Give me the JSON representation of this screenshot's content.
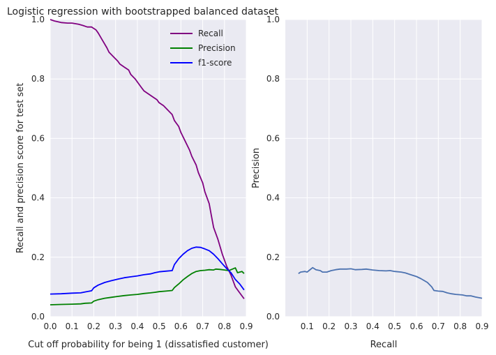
{
  "chart_data": [
    {
      "type": "line",
      "title": "Logistic regression with bootstrapped balanced dataset",
      "xlabel": "Cut off probability for being 1 (dissatisfied customer)",
      "ylabel": "Recall and precision score for test set",
      "xlim": [
        0.0,
        0.9
      ],
      "ylim": [
        0.0,
        1.0
      ],
      "xticks": [
        "0.0",
        "0.1",
        "0.2",
        "0.3",
        "0.4",
        "0.5",
        "0.6",
        "0.7",
        "0.8",
        "0.9"
      ],
      "yticks": [
        "0.0",
        "0.2",
        "0.4",
        "0.6",
        "0.8",
        "1.0"
      ],
      "grid": true,
      "legend_position": "top-right",
      "series": [
        {
          "name": "Recall",
          "color": "#800080",
          "points": [
            [
              0.0,
              1.0
            ],
            [
              0.02,
              0.995
            ],
            [
              0.05,
              0.99
            ],
            [
              0.08,
              0.988
            ],
            [
              0.1,
              0.988
            ],
            [
              0.13,
              0.984
            ],
            [
              0.15,
              0.98
            ],
            [
              0.17,
              0.975
            ],
            [
              0.19,
              0.975
            ],
            [
              0.21,
              0.965
            ],
            [
              0.22,
              0.955
            ],
            [
              0.24,
              0.93
            ],
            [
              0.26,
              0.905
            ],
            [
              0.27,
              0.89
            ],
            [
              0.29,
              0.875
            ],
            [
              0.31,
              0.86
            ],
            [
              0.32,
              0.85
            ],
            [
              0.34,
              0.84
            ],
            [
              0.36,
              0.83
            ],
            [
              0.37,
              0.815
            ],
            [
              0.39,
              0.8
            ],
            [
              0.4,
              0.79
            ],
            [
              0.42,
              0.77
            ],
            [
              0.43,
              0.76
            ],
            [
              0.45,
              0.75
            ],
            [
              0.47,
              0.74
            ],
            [
              0.49,
              0.73
            ],
            [
              0.5,
              0.72
            ],
            [
              0.52,
              0.71
            ],
            [
              0.54,
              0.695
            ],
            [
              0.56,
              0.68
            ],
            [
              0.57,
              0.66
            ],
            [
              0.59,
              0.64
            ],
            [
              0.6,
              0.62
            ],
            [
              0.62,
              0.59
            ],
            [
              0.64,
              0.56
            ],
            [
              0.65,
              0.54
            ],
            [
              0.67,
              0.51
            ],
            [
              0.68,
              0.485
            ],
            [
              0.7,
              0.45
            ],
            [
              0.71,
              0.42
            ],
            [
              0.73,
              0.38
            ],
            [
              0.74,
              0.34
            ],
            [
              0.75,
              0.3
            ],
            [
              0.77,
              0.26
            ],
            [
              0.79,
              0.21
            ],
            [
              0.81,
              0.17
            ],
            [
              0.83,
              0.14
            ],
            [
              0.85,
              0.1
            ],
            [
              0.87,
              0.08
            ],
            [
              0.89,
              0.06
            ]
          ]
        },
        {
          "name": "Precision",
          "color": "#008000",
          "points": [
            [
              0.0,
              0.04
            ],
            [
              0.05,
              0.041
            ],
            [
              0.1,
              0.042
            ],
            [
              0.14,
              0.043
            ],
            [
              0.16,
              0.045
            ],
            [
              0.19,
              0.046
            ],
            [
              0.2,
              0.052
            ],
            [
              0.22,
              0.057
            ],
            [
              0.25,
              0.062
            ],
            [
              0.28,
              0.065
            ],
            [
              0.31,
              0.068
            ],
            [
              0.34,
              0.071
            ],
            [
              0.37,
              0.073
            ],
            [
              0.4,
              0.075
            ],
            [
              0.43,
              0.078
            ],
            [
              0.46,
              0.08
            ],
            [
              0.48,
              0.082
            ],
            [
              0.5,
              0.084
            ],
            [
              0.53,
              0.086
            ],
            [
              0.56,
              0.088
            ],
            [
              0.57,
              0.098
            ],
            [
              0.59,
              0.11
            ],
            [
              0.61,
              0.124
            ],
            [
              0.63,
              0.135
            ],
            [
              0.65,
              0.145
            ],
            [
              0.67,
              0.152
            ],
            [
              0.69,
              0.155
            ],
            [
              0.71,
              0.156
            ],
            [
              0.73,
              0.158
            ],
            [
              0.75,
              0.157
            ],
            [
              0.76,
              0.16
            ],
            [
              0.78,
              0.159
            ],
            [
              0.8,
              0.157
            ],
            [
              0.82,
              0.155
            ],
            [
              0.83,
              0.158
            ],
            [
              0.85,
              0.164
            ],
            [
              0.86,
              0.148
            ],
            [
              0.88,
              0.152
            ],
            [
              0.89,
              0.145
            ]
          ]
        },
        {
          "name": "f1-score",
          "color": "#0000ff",
          "points": [
            [
              0.0,
              0.076
            ],
            [
              0.05,
              0.077
            ],
            [
              0.1,
              0.079
            ],
            [
              0.14,
              0.08
            ],
            [
              0.16,
              0.083
            ],
            [
              0.19,
              0.087
            ],
            [
              0.2,
              0.097
            ],
            [
              0.22,
              0.106
            ],
            [
              0.25,
              0.115
            ],
            [
              0.28,
              0.121
            ],
            [
              0.31,
              0.126
            ],
            [
              0.34,
              0.131
            ],
            [
              0.37,
              0.134
            ],
            [
              0.4,
              0.137
            ],
            [
              0.43,
              0.141
            ],
            [
              0.46,
              0.144
            ],
            [
              0.48,
              0.148
            ],
            [
              0.5,
              0.151
            ],
            [
              0.53,
              0.153
            ],
            [
              0.56,
              0.155
            ],
            [
              0.57,
              0.175
            ],
            [
              0.59,
              0.195
            ],
            [
              0.61,
              0.21
            ],
            [
              0.63,
              0.222
            ],
            [
              0.65,
              0.23
            ],
            [
              0.67,
              0.234
            ],
            [
              0.69,
              0.233
            ],
            [
              0.71,
              0.228
            ],
            [
              0.73,
              0.222
            ],
            [
              0.75,
              0.21
            ],
            [
              0.77,
              0.195
            ],
            [
              0.79,
              0.178
            ],
            [
              0.81,
              0.162
            ],
            [
              0.83,
              0.148
            ],
            [
              0.85,
              0.125
            ],
            [
              0.87,
              0.11
            ],
            [
              0.89,
              0.09
            ]
          ]
        }
      ]
    },
    {
      "type": "line",
      "title": "",
      "xlabel": "Recall",
      "ylabel": "Precision",
      "xlim": [
        0.0,
        0.9
      ],
      "ylim": [
        0.0,
        1.0
      ],
      "xticks": [
        "0.1",
        "0.2",
        "0.3",
        "0.4",
        "0.5",
        "0.6",
        "0.7",
        "0.8",
        "0.9"
      ],
      "yticks": [
        "0.0",
        "0.2",
        "0.4",
        "0.6",
        "0.8",
        "1.0"
      ],
      "grid": true,
      "series": [
        {
          "color": "#4c72b0",
          "points": [
            [
              0.06,
              0.145
            ],
            [
              0.07,
              0.15
            ],
            [
              0.09,
              0.152
            ],
            [
              0.1,
              0.15
            ],
            [
              0.11,
              0.156
            ],
            [
              0.125,
              0.165
            ],
            [
              0.14,
              0.158
            ],
            [
              0.16,
              0.155
            ],
            [
              0.17,
              0.15
            ],
            [
              0.19,
              0.15
            ],
            [
              0.21,
              0.155
            ],
            [
              0.23,
              0.158
            ],
            [
              0.25,
              0.16
            ],
            [
              0.28,
              0.16
            ],
            [
              0.3,
              0.161
            ],
            [
              0.32,
              0.158
            ],
            [
              0.35,
              0.159
            ],
            [
              0.37,
              0.16
            ],
            [
              0.4,
              0.157
            ],
            [
              0.43,
              0.155
            ],
            [
              0.46,
              0.154
            ],
            [
              0.48,
              0.155
            ],
            [
              0.5,
              0.152
            ],
            [
              0.53,
              0.15
            ],
            [
              0.55,
              0.147
            ],
            [
              0.57,
              0.142
            ],
            [
              0.6,
              0.135
            ],
            [
              0.62,
              0.128
            ],
            [
              0.65,
              0.115
            ],
            [
              0.67,
              0.1
            ],
            [
              0.68,
              0.088
            ],
            [
              0.7,
              0.086
            ],
            [
              0.72,
              0.085
            ],
            [
              0.74,
              0.08
            ],
            [
              0.76,
              0.077
            ],
            [
              0.78,
              0.075
            ],
            [
              0.81,
              0.073
            ],
            [
              0.83,
              0.07
            ],
            [
              0.85,
              0.07
            ],
            [
              0.87,
              0.066
            ],
            [
              0.9,
              0.062
            ]
          ]
        }
      ]
    }
  ]
}
